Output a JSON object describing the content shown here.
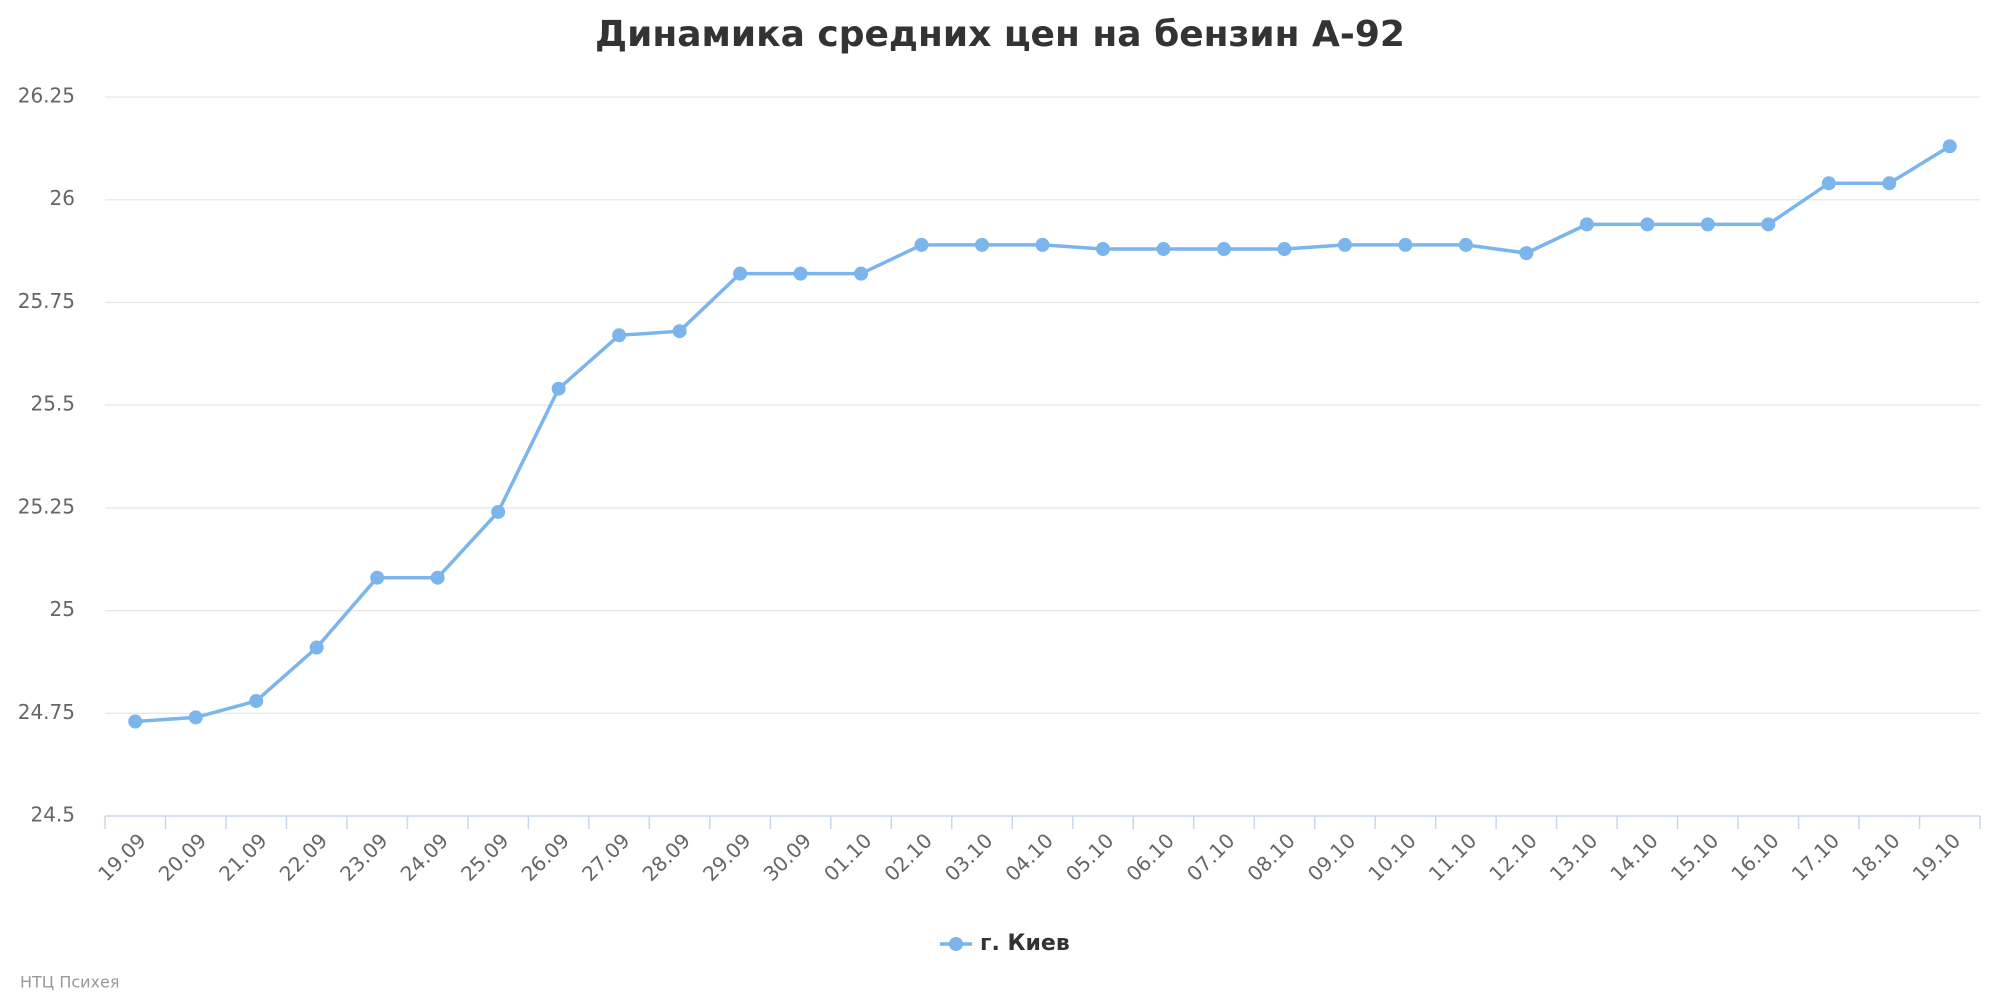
{
  "chart_data": {
    "type": "line",
    "title": "Динамика средних цен на бензин А-92",
    "categories": [
      "19.09",
      "20.09",
      "21.09",
      "22.09",
      "23.09",
      "24.09",
      "25.09",
      "26.09",
      "27.09",
      "28.09",
      "29.09",
      "30.09",
      "01.10",
      "02.10",
      "03.10",
      "04.10",
      "05.10",
      "06.10",
      "07.10",
      "08.10",
      "09.10",
      "10.10",
      "11.10",
      "12.10",
      "13.10",
      "14.10",
      "15.10",
      "16.10",
      "17.10",
      "18.10",
      "19.10"
    ],
    "series": [
      {
        "name": "г. Киев",
        "color": "#7cb5ec",
        "values": [
          24.73,
          24.74,
          24.78,
          24.91,
          25.08,
          25.08,
          25.24,
          25.54,
          25.67,
          25.68,
          25.82,
          25.82,
          25.82,
          25.89,
          25.89,
          25.89,
          25.88,
          25.88,
          25.88,
          25.88,
          25.89,
          25.89,
          25.89,
          25.87,
          25.94,
          25.94,
          25.94,
          25.94,
          26.04,
          26.04,
          26.13
        ]
      }
    ],
    "ylim": [
      24.5,
      26.25
    ],
    "yticks": [
      24.5,
      24.75,
      25,
      25.25,
      25.5,
      25.75,
      26,
      26.25
    ],
    "grid": true,
    "legend": "bottom",
    "credits": "НТЦ Психея"
  }
}
